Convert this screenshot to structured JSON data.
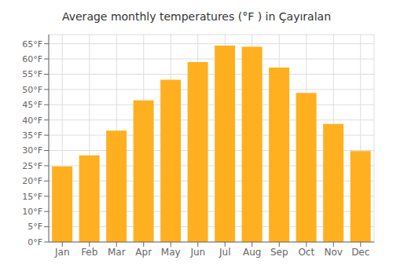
{
  "chart_data": {
    "type": "bar",
    "title": "Average monthly temperatures (°F ) in Çayıralan",
    "categories": [
      "Jan",
      "Feb",
      "Mar",
      "Apr",
      "May",
      "Jun",
      "Jul",
      "Aug",
      "Sep",
      "Oct",
      "Nov",
      "Dec"
    ],
    "values": [
      24.8,
      28.4,
      36.5,
      46.4,
      53.2,
      59.0,
      64.4,
      64.0,
      57.2,
      48.9,
      38.7,
      29.8
    ],
    "color": "#FFB020",
    "ylim": [
      0,
      68
    ],
    "yticks": [
      {
        "value": 0,
        "label": "0°F"
      },
      {
        "value": 5,
        "label": "5°F"
      },
      {
        "value": 10,
        "label": "10°F"
      },
      {
        "value": 15,
        "label": "15°F"
      },
      {
        "value": 20,
        "label": "20°F"
      },
      {
        "value": 25,
        "label": "25°F"
      },
      {
        "value": 30,
        "label": "30°F"
      },
      {
        "value": 35,
        "label": "35°F"
      },
      {
        "value": 40,
        "label": "40°F"
      },
      {
        "value": 45,
        "label": "45°F"
      },
      {
        "value": 50,
        "label": "50°F"
      },
      {
        "value": 55,
        "label": "55°F"
      },
      {
        "value": 60,
        "label": "60°F"
      },
      {
        "value": 65,
        "label": "65°F"
      }
    ],
    "grid": true
  }
}
